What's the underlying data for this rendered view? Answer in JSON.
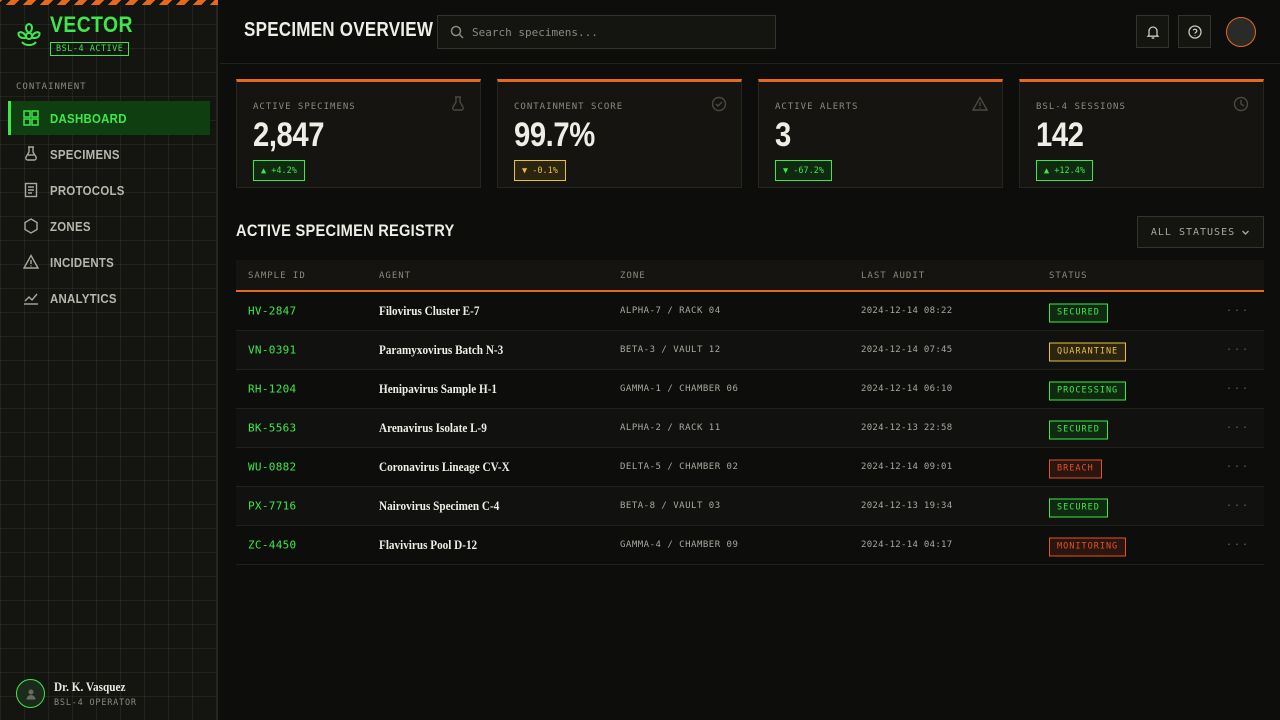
{
  "brand": {
    "title": "VECTOR",
    "badge": "BSL-4 ACTIVE"
  },
  "sidebar": {
    "section_label": "CONTAINMENT",
    "items": [
      {
        "label": "DASHBOARD",
        "icon": "dashboard-grid-icon",
        "active": true
      },
      {
        "label": "SPECIMENS",
        "icon": "flask-icon"
      },
      {
        "label": "PROTOCOLS",
        "icon": "document-icon"
      },
      {
        "label": "ZONES",
        "icon": "hexagon-icon"
      },
      {
        "label": "INCIDENTS",
        "icon": "warning-triangle-icon"
      },
      {
        "label": "ANALYTICS",
        "icon": "line-chart-icon"
      }
    ],
    "user": {
      "name": "Dr. K. Vasquez",
      "role": "BSL-4 OPERATOR"
    }
  },
  "header": {
    "title": "SPECIMEN OVERVIEW",
    "search_placeholder": "Search specimens..."
  },
  "stats": [
    {
      "label": "ACTIVE SPECIMENS",
      "value": "2,847",
      "delta": "▲ +4.2%",
      "tone": "up",
      "icon": "flask-icon"
    },
    {
      "label": "CONTAINMENT SCORE",
      "value": "99.7%",
      "delta": "▼ -0.1%",
      "tone": "warn",
      "icon": "check-circle-icon"
    },
    {
      "label": "ACTIVE ALERTS",
      "value": "3",
      "delta": "▼ -67.2%",
      "tone": "up",
      "icon": "warning-triangle-icon"
    },
    {
      "label": "BSL-4 SESSIONS",
      "value": "142",
      "delta": "▲ +12.4%",
      "tone": "up",
      "icon": "clock-icon"
    }
  ],
  "registry": {
    "title": "ACTIVE SPECIMEN REGISTRY",
    "filter_label": "ALL STATUSES",
    "columns": [
      "SAMPLE ID",
      "AGENT",
      "ZONE",
      "LAST AUDIT",
      "STATUS"
    ],
    "rows": [
      {
        "id": "HV-2847",
        "agent": "Filovirus Cluster E-7",
        "zone": "ALPHA-7 / RACK 04",
        "audit": "2024-12-14 08:22",
        "status": "SECURED"
      },
      {
        "id": "VN-0391",
        "agent": "Paramyxovirus Batch N-3",
        "zone": "BETA-3 / VAULT 12",
        "audit": "2024-12-14 07:45",
        "status": "QUARANTINE"
      },
      {
        "id": "RH-1204",
        "agent": "Henipavirus Sample H-1",
        "zone": "GAMMA-1 / CHAMBER 06",
        "audit": "2024-12-14 06:10",
        "status": "PROCESSING"
      },
      {
        "id": "BK-5563",
        "agent": "Arenavirus Isolate L-9",
        "zone": "ALPHA-2 / RACK 11",
        "audit": "2024-12-13 22:58",
        "status": "SECURED"
      },
      {
        "id": "WU-0882",
        "agent": "Coronavirus Lineage CV-X",
        "zone": "DELTA-5 / CHAMBER 02",
        "audit": "2024-12-14 09:01",
        "status": "BREACH"
      },
      {
        "id": "PX-7716",
        "agent": "Nairovirus Specimen C-4",
        "zone": "BETA-8 / VAULT 03",
        "audit": "2024-12-13 19:34",
        "status": "SECURED"
      },
      {
        "id": "ZC-4450",
        "agent": "Flavivirus Pool D-12",
        "zone": "GAMMA-4 / CHAMBER 09",
        "audit": "2024-12-14 04:17",
        "status": "MONITORING"
      }
    ]
  },
  "colors": {
    "accent": "#3ee84a",
    "hazard": "#e56a1e",
    "warn": "#e8c23e",
    "danger": "#e5541e"
  }
}
